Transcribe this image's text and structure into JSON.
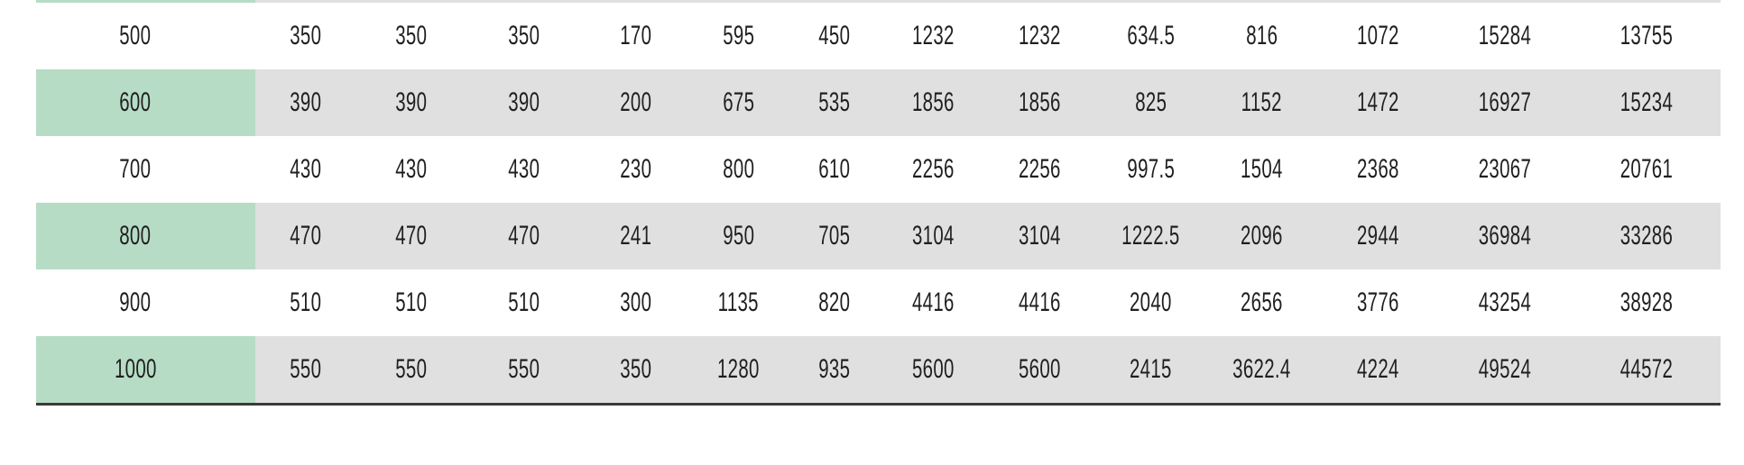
{
  "table": {
    "description": "Numeric specification table, header rows cropped out of view; sliver of previous striped row visible at top edge",
    "rows": [
      {
        "cells": [
          "500",
          "350",
          "350",
          "350",
          "170",
          "595",
          "450",
          "1232",
          "1232",
          "634.5",
          "816",
          "1072",
          "15284",
          "13755"
        ]
      },
      {
        "cells": [
          "600",
          "390",
          "390",
          "390",
          "200",
          "675",
          "535",
          "1856",
          "1856",
          "825",
          "1152",
          "1472",
          "16927",
          "15234"
        ]
      },
      {
        "cells": [
          "700",
          "430",
          "430",
          "430",
          "230",
          "800",
          "610",
          "2256",
          "2256",
          "997.5",
          "1504",
          "2368",
          "23067",
          "20761"
        ]
      },
      {
        "cells": [
          "800",
          "470",
          "470",
          "470",
          "241",
          "950",
          "705",
          "3104",
          "3104",
          "1222.5",
          "2096",
          "2944",
          "36984",
          "33286"
        ]
      },
      {
        "cells": [
          "900",
          "510",
          "510",
          "510",
          "300",
          "1135",
          "820",
          "4416",
          "4416",
          "2040",
          "2656",
          "3776",
          "43254",
          "38928"
        ]
      },
      {
        "cells": [
          "1000",
          "550",
          "550",
          "550",
          "350",
          "1280",
          "935",
          "5600",
          "5600",
          "2415",
          "3622.4",
          "4224",
          "49524",
          "44572"
        ]
      }
    ]
  },
  "colors": {
    "row_header_highlight": "#b6dcc5",
    "row_stripe": "#e0e0e0",
    "row_plain": "#ffffff",
    "table_bottom_border": "#3a3a3a",
    "text": "#1f1f1f"
  }
}
